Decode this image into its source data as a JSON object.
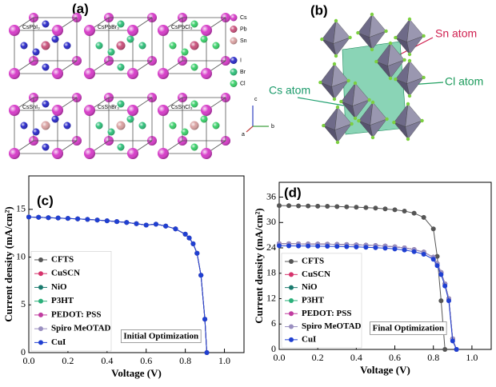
{
  "panel_a": {
    "label": "(a)",
    "cells": [
      "CsPbI₃",
      "CsPbBr₃",
      "CsPbCl₃",
      "CsSnI₃",
      "CsSnBr₃",
      "CsSnCl₃"
    ],
    "legend": [
      "Cs",
      "Pb",
      "Sn",
      "I",
      "Br",
      "Cl"
    ],
    "legend_colors": [
      "#d63cc8",
      "#c8507a",
      "#d8a0a0",
      "#2a2ac8",
      "#2fc07a",
      "#3ad06a"
    ],
    "axes": [
      "c",
      "a",
      "b"
    ]
  },
  "panel_b": {
    "label": "(b)",
    "annotations": [
      "Sn atom",
      "Cl atom",
      "Cs atom"
    ]
  },
  "chart_data": [
    {
      "type": "line",
      "panel_label": "(c)",
      "annotation": "Initial Optimization",
      "x_label": "Voltage (V)",
      "y_label": "Current density (mA/cm²)",
      "x": [
        0,
        0.05,
        0.1,
        0.15,
        0.2,
        0.25,
        0.3,
        0.35,
        0.4,
        0.45,
        0.5,
        0.55,
        0.6,
        0.65,
        0.7,
        0.75,
        0.8,
        0.82,
        0.84,
        0.86,
        0.88,
        0.9,
        0.91
      ],
      "series": [
        {
          "name": "CFTS",
          "color": "#555555",
          "values": [
            14.2,
            14.17,
            14.13,
            14.09,
            14.05,
            14.0,
            13.95,
            13.88,
            13.8,
            13.72,
            13.62,
            13.5,
            13.35,
            13.45,
            13.25,
            12.95,
            12.4,
            12.0,
            11.4,
            10.4,
            8.1,
            3.5,
            0
          ]
        },
        {
          "name": "CuSCN",
          "color": "#d6336c",
          "values": [
            14.2,
            14.17,
            14.13,
            14.09,
            14.05,
            14.0,
            13.95,
            13.88,
            13.8,
            13.72,
            13.62,
            13.5,
            13.35,
            13.45,
            13.25,
            12.95,
            12.4,
            12.0,
            11.4,
            10.4,
            8.1,
            3.5,
            0
          ]
        },
        {
          "name": "NiO",
          "color": "#1a7a6e",
          "values": [
            14.2,
            14.17,
            14.13,
            14.09,
            14.05,
            14.0,
            13.95,
            13.88,
            13.8,
            13.72,
            13.62,
            13.5,
            13.35,
            13.45,
            13.25,
            12.95,
            12.4,
            12.0,
            11.4,
            10.4,
            8.1,
            3.5,
            0
          ]
        },
        {
          "name": "P3HT",
          "color": "#2ab07a",
          "values": [
            14.2,
            14.17,
            14.13,
            14.09,
            14.05,
            14.0,
            13.95,
            13.88,
            13.8,
            13.72,
            13.62,
            13.5,
            13.35,
            13.45,
            13.25,
            12.95,
            12.4,
            12.0,
            11.4,
            10.4,
            8.1,
            3.5,
            0
          ]
        },
        {
          "name": "PEDOT: PSS",
          "color": "#c03ca0",
          "values": [
            14.2,
            14.17,
            14.13,
            14.09,
            14.05,
            14.0,
            13.95,
            13.88,
            13.8,
            13.72,
            13.62,
            13.5,
            13.35,
            13.45,
            13.25,
            12.95,
            12.4,
            12.0,
            11.4,
            10.4,
            8.1,
            3.5,
            0
          ]
        },
        {
          "name": "Spiro MeOTAD",
          "color": "#9a8fc0",
          "values": [
            14.2,
            14.17,
            14.13,
            14.09,
            14.05,
            14.0,
            13.95,
            13.88,
            13.8,
            13.72,
            13.62,
            13.5,
            13.35,
            13.45,
            13.25,
            12.95,
            12.4,
            12.0,
            11.4,
            10.4,
            8.1,
            3.5,
            0
          ]
        },
        {
          "name": "CuI",
          "color": "#1f3fd1",
          "values": [
            14.2,
            14.17,
            14.13,
            14.09,
            14.05,
            14.0,
            13.95,
            13.88,
            13.8,
            13.72,
            13.62,
            13.5,
            13.35,
            13.45,
            13.25,
            12.95,
            12.4,
            12.0,
            11.4,
            10.4,
            8.1,
            3.5,
            0
          ]
        }
      ],
      "xlim": [
        0,
        1.1
      ],
      "ylim": [
        0,
        18.5
      ],
      "xticks": [
        {
          "value": 0,
          "label": "0.0"
        },
        {
          "value": 0.2,
          "label": "0.2"
        },
        {
          "value": 0.4,
          "label": "0.4"
        },
        {
          "value": 0.6,
          "label": "0.6"
        },
        {
          "value": 0.8,
          "label": "0.8"
        },
        {
          "value": 1,
          "label": "1.0"
        }
      ],
      "yticks": [
        0,
        5,
        10,
        15
      ],
      "legend": "lower left"
    },
    {
      "type": "line",
      "panel_label": "(d)",
      "annotation": "Final Optimization",
      "x_label": "Voltage (V)",
      "y_label": "Current density (mA/cm²)",
      "x": [
        0,
        0.05,
        0.1,
        0.15,
        0.2,
        0.25,
        0.3,
        0.35,
        0.4,
        0.45,
        0.5,
        0.55,
        0.6,
        0.65,
        0.7,
        0.75,
        0.8,
        0.82,
        0.84,
        0.86,
        0.88,
        0.9,
        0.92
      ],
      "series": [
        {
          "name": "CFTS",
          "color": "#555555",
          "values": [
            34,
            33.97,
            33.93,
            33.9,
            33.86,
            33.82,
            33.77,
            33.7,
            33.62,
            33.52,
            33.4,
            33.22,
            33.0,
            32.7,
            32.2,
            31.2,
            28.5,
            22,
            11.5,
            0,
            null,
            null,
            null
          ]
        },
        {
          "name": "CuSCN",
          "color": "#d6336c",
          "values": [
            25,
            24.98,
            24.95,
            24.93,
            24.9,
            24.87,
            24.83,
            24.78,
            24.72,
            24.64,
            24.55,
            24.42,
            24.25,
            24.0,
            23.6,
            23.0,
            21.8,
            20.3,
            18.2,
            15.5,
            12.0,
            2.5,
            0
          ]
        },
        {
          "name": "NiO",
          "color": "#1a7a6e",
          "values": [
            25,
            24.98,
            24.95,
            24.93,
            24.9,
            24.87,
            24.83,
            24.78,
            24.72,
            24.64,
            24.55,
            24.42,
            24.25,
            24.0,
            23.6,
            23.0,
            21.8,
            20.3,
            18.2,
            15.5,
            12.0,
            2.5,
            0
          ]
        },
        {
          "name": "P3HT",
          "color": "#2ab07a",
          "values": [
            25,
            24.98,
            24.95,
            24.93,
            24.9,
            24.87,
            24.83,
            24.78,
            24.72,
            24.64,
            24.55,
            24.42,
            24.25,
            24.0,
            23.6,
            23.0,
            21.8,
            20.3,
            18.2,
            15.5,
            12.0,
            2.5,
            0
          ]
        },
        {
          "name": "PEDOT: PSS",
          "color": "#c03ca0",
          "values": [
            25,
            24.98,
            24.95,
            24.93,
            24.9,
            24.87,
            24.83,
            24.78,
            24.72,
            24.64,
            24.55,
            24.42,
            24.25,
            24.0,
            23.6,
            23.0,
            21.8,
            20.3,
            18.2,
            15.5,
            12.0,
            2.5,
            0
          ]
        },
        {
          "name": "Spiro MeOTAD",
          "color": "#9a8fc0",
          "values": [
            25,
            24.98,
            24.95,
            24.93,
            24.9,
            24.87,
            24.83,
            24.78,
            24.72,
            24.64,
            24.55,
            24.42,
            24.25,
            24.0,
            23.6,
            23.0,
            21.8,
            20.3,
            18.2,
            15.5,
            12.0,
            2.5,
            0
          ]
        },
        {
          "name": "CuI",
          "color": "#1f3fd1",
          "values": [
            24.5,
            24.48,
            24.45,
            24.43,
            24.4,
            24.37,
            24.33,
            24.28,
            24.22,
            24.14,
            24.05,
            23.92,
            23.75,
            23.5,
            23.1,
            22.5,
            21.3,
            19.8,
            17.7,
            15.0,
            11.5,
            2.0,
            0
          ]
        }
      ],
      "xlim": [
        0,
        1.1
      ],
      "ylim": [
        0,
        39.5
      ],
      "xticks": [
        {
          "value": 0,
          "label": "0.0"
        },
        {
          "value": 0.2,
          "label": "0.2"
        },
        {
          "value": 0.4,
          "label": "0.4"
        },
        {
          "value": 0.6,
          "label": "0.6"
        },
        {
          "value": 0.8,
          "label": "0.8"
        },
        {
          "value": 1,
          "label": "1.0"
        }
      ],
      "yticks": [
        0,
        6,
        12,
        18,
        24,
        30,
        36
      ],
      "legend": "lower left"
    }
  ]
}
